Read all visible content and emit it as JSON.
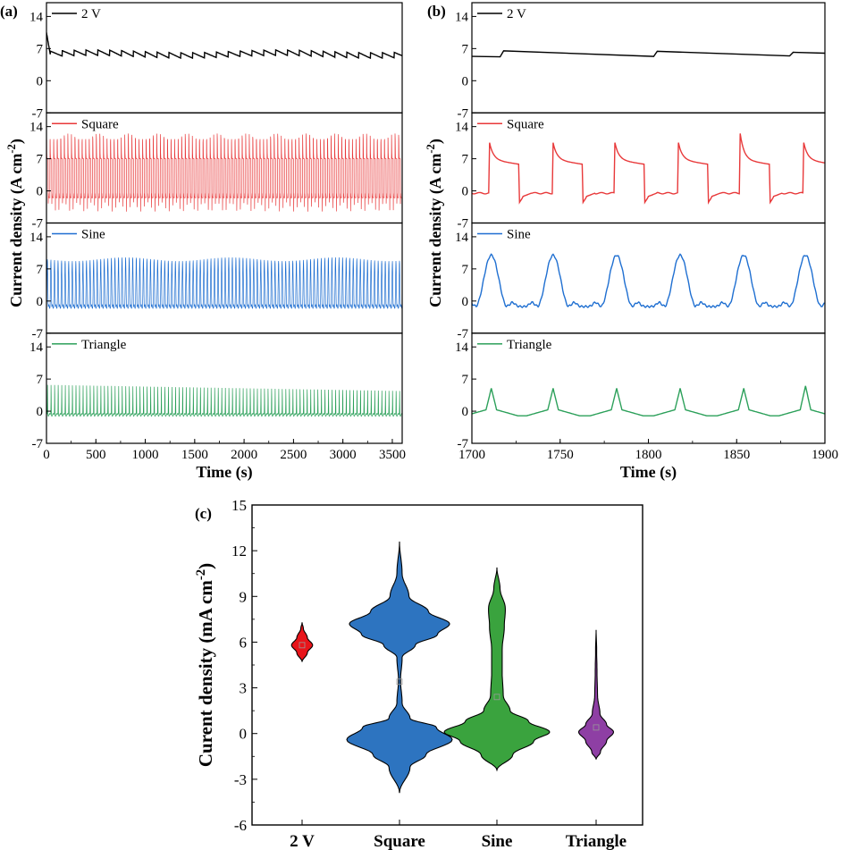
{
  "chart_data": [
    {
      "panel": "(a)",
      "type": "line",
      "xlabel": "Time (s)",
      "ylabel": "Current density (A cm⁻²)",
      "xlim": [
        0,
        3600
      ],
      "xticks": [
        "0",
        "500",
        "1000",
        "1500",
        "2000",
        "2500",
        "3000",
        "3500"
      ],
      "ylim": [
        -7,
        17
      ],
      "yticks": [
        "-7",
        "0",
        "7",
        "14"
      ],
      "series": [
        {
          "name": "2 V",
          "color": "#000000",
          "kind": "dc",
          "base": 5.5,
          "initial_peak": 10.5,
          "sawtooth_period_s": 120,
          "amplitude": 1.2
        },
        {
          "name": "Square",
          "color": "#e8393a",
          "kind": "square",
          "high": 7,
          "low": -1.5,
          "spike": 11.5,
          "period_s": 36,
          "min_dip": -3.5
        },
        {
          "name": "Sine",
          "color": "#1f6fd1",
          "kind": "sine",
          "peak": 9.5,
          "low": -1.2,
          "period_s": 36
        },
        {
          "name": "Triangle",
          "color": "#2ca05a",
          "kind": "triangle",
          "peak_start": 6.5,
          "peak_end": 5,
          "low": -0.8,
          "period_s": 36
        }
      ]
    },
    {
      "panel": "(b)",
      "type": "line",
      "xlabel": "Time (s)",
      "ylabel": "Current density (A cm⁻²)",
      "xlim": [
        1700,
        1900
      ],
      "xticks": [
        "1700",
        "1750",
        "1800",
        "1850",
        "1900"
      ],
      "ylim": [
        -7,
        17
      ],
      "yticks": [
        "-7",
        "0",
        "7",
        "14"
      ],
      "series": [
        {
          "name": "2 V",
          "color": "#000000",
          "kind": "dc",
          "segments": [
            [
              1700,
              5.3
            ],
            [
              1716,
              5.2
            ],
            [
              1718,
              6.5
            ],
            [
              1803,
              5.3
            ],
            [
              1805,
              6.4
            ],
            [
              1880,
              5.4
            ],
            [
              1882,
              6.2
            ],
            [
              1900,
              6.0
            ]
          ]
        },
        {
          "name": "Square",
          "color": "#e8393a",
          "kind": "square",
          "pulse_starts": [
            1710,
            1746,
            1781,
            1817,
            1852,
            1888
          ],
          "peaks": [
            10.5,
            10.5,
            10.5,
            10.5,
            12.5,
            10.5
          ],
          "high": 6.8,
          "low": -0.5,
          "min_dip": -2.5
        },
        {
          "name": "Sine",
          "color": "#1f6fd1",
          "kind": "sine",
          "peak_times": [
            1711,
            1746,
            1782,
            1818,
            1854,
            1889
          ],
          "peak": 10,
          "low": -1.2
        },
        {
          "name": "Triangle",
          "color": "#2ca05a",
          "kind": "triangle",
          "peak_times": [
            1711,
            1746,
            1782,
            1818,
            1854,
            1889
          ],
          "peaks": [
            5,
            5,
            5,
            5,
            5,
            5.5
          ],
          "low": -1
        }
      ]
    },
    {
      "panel": "(c)",
      "type": "violin",
      "ylabel": "Curent density (mA cm⁻²)",
      "categories": [
        "2 V",
        "Square",
        "Sine",
        "Triangle"
      ],
      "ylim": [
        -6,
        15
      ],
      "yticks": [
        "-6",
        "-3",
        "0",
        "3",
        "6",
        "9",
        "12",
        "15"
      ],
      "violins": [
        {
          "category": "2 V",
          "color": "#e8141a",
          "min": 4.7,
          "max": 7.3,
          "mean": 5.8,
          "profile": [
            [
              4.7,
              0
            ],
            [
              5.3,
              0.5
            ],
            [
              5.8,
              1.0
            ],
            [
              6.3,
              0.5
            ],
            [
              6.9,
              0.12
            ],
            [
              7.3,
              0
            ]
          ],
          "halfwidth_rel": 0.2
        },
        {
          "category": "Square",
          "color": "#2d74c0",
          "min": -3.9,
          "max": 12.6,
          "mean": 3.4,
          "profile": [
            [
              -3.9,
              0
            ],
            [
              -2.2,
              0.2
            ],
            [
              -1.4,
              0.5
            ],
            [
              -0.4,
              1.0
            ],
            [
              0.4,
              0.7
            ],
            [
              1.0,
              0.2
            ],
            [
              2.0,
              0.05
            ],
            [
              3.5,
              0.02
            ],
            [
              5.0,
              0.05
            ],
            [
              5.8,
              0.3
            ],
            [
              6.5,
              0.72
            ],
            [
              7.2,
              0.95
            ],
            [
              8.0,
              0.55
            ],
            [
              9.0,
              0.18
            ],
            [
              10.5,
              0.05
            ],
            [
              12.6,
              0
            ]
          ],
          "halfwidth_rel": 1.0
        },
        {
          "category": "Sine",
          "color": "#3aa33e",
          "min": -2.4,
          "max": 10.9,
          "mean": 2.4,
          "profile": [
            [
              -2.4,
              0
            ],
            [
              -1.4,
              0.3
            ],
            [
              -0.5,
              0.7
            ],
            [
              0.1,
              1.0
            ],
            [
              0.8,
              0.6
            ],
            [
              1.5,
              0.25
            ],
            [
              2.5,
              0.12
            ],
            [
              4.0,
              0.1
            ],
            [
              5.5,
              0.1
            ],
            [
              7.0,
              0.14
            ],
            [
              8.2,
              0.16
            ],
            [
              9.5,
              0.06
            ],
            [
              10.9,
              0
            ]
          ],
          "halfwidth_rel": 1.0
        },
        {
          "category": "Triangle",
          "color": "#8e3fa4",
          "min": -1.7,
          "max": 6.8,
          "mean": 0.4,
          "profile": [
            [
              -1.7,
              0
            ],
            [
              -1.2,
              0.25
            ],
            [
              -0.5,
              0.6
            ],
            [
              0.1,
              1.0
            ],
            [
              0.6,
              0.6
            ],
            [
              1.3,
              0.22
            ],
            [
              2.5,
              0.08
            ],
            [
              4.0,
              0.05
            ],
            [
              5.5,
              0.03
            ],
            [
              6.8,
              0
            ]
          ],
          "halfwidth_rel": 0.33
        }
      ]
    }
  ]
}
